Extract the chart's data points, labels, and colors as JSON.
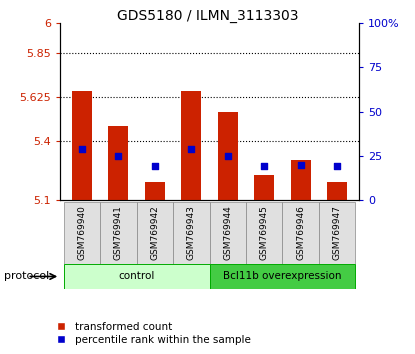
{
  "title": "GDS5180 / ILMN_3113303",
  "samples": [
    "GSM769940",
    "GSM769941",
    "GSM769942",
    "GSM769943",
    "GSM769944",
    "GSM769945",
    "GSM769946",
    "GSM769947"
  ],
  "transformed_counts": [
    5.655,
    5.475,
    5.19,
    5.655,
    5.545,
    5.225,
    5.305,
    5.19
  ],
  "percentile_ranks": [
    29,
    25,
    19,
    29,
    25,
    19,
    20,
    19
  ],
  "bar_bottom": 5.1,
  "ylim_left": [
    5.1,
    6.0
  ],
  "ylim_right": [
    0,
    100
  ],
  "yticks_left": [
    5.1,
    5.4,
    5.625,
    5.85,
    6.0
  ],
  "ytick_labels_left": [
    "5.1",
    "5.4",
    "5.625",
    "5.85",
    "6"
  ],
  "yticks_right": [
    0,
    25,
    50,
    75,
    100
  ],
  "ytick_labels_right": [
    "0",
    "25",
    "50",
    "75",
    "100%"
  ],
  "groups": [
    {
      "label": "control",
      "start": 0,
      "end": 4,
      "color": "#ccffcc",
      "edgecolor": "#00aa00"
    },
    {
      "label": "Bcl11b overexpression",
      "start": 4,
      "end": 8,
      "color": "#44cc44",
      "edgecolor": "#00aa00"
    }
  ],
  "bar_color": "#cc2200",
  "dot_color": "#0000cc",
  "bar_width": 0.55,
  "grid_linestyle": "dotted",
  "grid_color": "#000000",
  "background_color": "#ffffff",
  "protocol_label": "protocol",
  "legend_items": [
    {
      "label": "transformed count",
      "color": "#cc2200"
    },
    {
      "label": "percentile rank within the sample",
      "color": "#0000cc"
    }
  ],
  "title_fontsize": 10,
  "tick_fontsize": 8,
  "label_fontsize": 8
}
